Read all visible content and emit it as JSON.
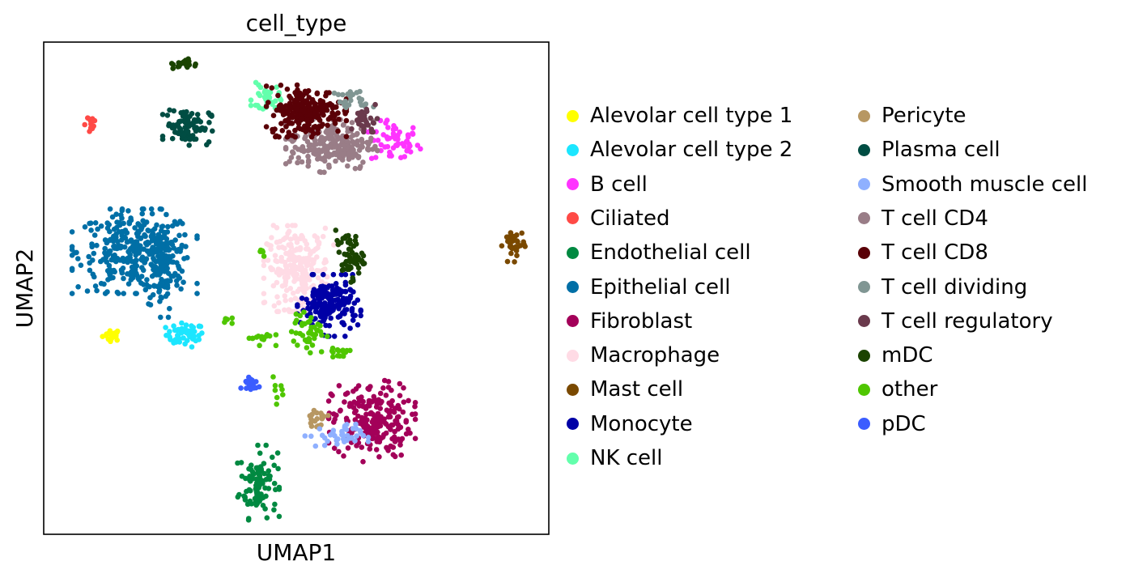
{
  "chart_data": {
    "type": "scatter",
    "title": "cell_type",
    "xlabel": "UMAP1",
    "ylabel": "UMAP2",
    "xlim": [
      0,
      100
    ],
    "ylim": [
      0,
      100
    ],
    "grid": false,
    "ticks": "none",
    "legend_position": "right",
    "legend_columns": 2,
    "series": [
      {
        "name": "Alevolar cell type 1",
        "color": "#ffff00",
        "clusters": [
          {
            "center": [
              13.5,
              40.5
            ],
            "spread": [
              1.2,
              0.8
            ],
            "n": 22
          }
        ]
      },
      {
        "name": "Alevolar cell type 2",
        "color": "#1ce6ff",
        "clusters": [
          {
            "center": [
              28.0,
              40.5
            ],
            "spread": [
              2.5,
              1.6
            ],
            "n": 50
          }
        ]
      },
      {
        "name": "B cell",
        "color": "#ff34ff",
        "clusters": [
          {
            "center": [
              69.5,
              79.5
            ],
            "spread": [
              3.2,
              2.8
            ],
            "n": 55
          }
        ]
      },
      {
        "name": "Ciliated",
        "color": "#ff4a46",
        "clusters": [
          {
            "center": [
              9.0,
              83.5
            ],
            "spread": [
              1.1,
              1.3
            ],
            "n": 14
          }
        ]
      },
      {
        "name": "Endothelial cell",
        "color": "#008941",
        "clusters": [
          {
            "center": [
              42.5,
              10.5
            ],
            "spread": [
              2.5,
              4.6
            ],
            "n": 100
          }
        ]
      },
      {
        "name": "Epithelial cell",
        "color": "#006fa6",
        "clusters": [
          {
            "center": [
              18.0,
              57.5
            ],
            "spread": [
              7.5,
              5.2
            ],
            "n": 320
          },
          {
            "center": [
              23.5,
              54.0
            ],
            "spread": [
              2.6,
              6.0
            ],
            "n": 110
          }
        ]
      },
      {
        "name": "Fibroblast",
        "color": "#a30059",
        "clusters": [
          {
            "center": [
              65.0,
              23.0
            ],
            "spread": [
              5.2,
              5.0
            ],
            "n": 220
          }
        ]
      },
      {
        "name": "Macrophage",
        "color": "#ffdbe5",
        "clusters": [
          {
            "center": [
              50.5,
              54.0
            ],
            "spread": [
              4.2,
              5.3
            ],
            "n": 240
          }
        ]
      },
      {
        "name": "Mast cell",
        "color": "#7a4900",
        "clusters": [
          {
            "center": [
              93.0,
              59.0
            ],
            "spread": [
              1.4,
              2.2
            ],
            "n": 35
          }
        ]
      },
      {
        "name": "Monocyte",
        "color": "#0000a6",
        "clusters": [
          {
            "center": [
              56.5,
              46.5
            ],
            "spread": [
              3.8,
              3.8
            ],
            "n": 180
          }
        ]
      },
      {
        "name": "NK cell",
        "color": "#63ffac",
        "clusters": [
          {
            "center": [
              44.0,
              88.5
            ],
            "spread": [
              1.8,
              2.0
            ],
            "n": 35
          }
        ]
      },
      {
        "name": "Pericyte",
        "color": "#b79762",
        "clusters": [
          {
            "center": [
              54.0,
              23.5
            ],
            "spread": [
              1.4,
              1.0
            ],
            "n": 18
          }
        ]
      },
      {
        "name": "Plasma cell",
        "color": "#004d43",
        "clusters": [
          {
            "center": [
              28.5,
              83.0
            ],
            "spread": [
              3.0,
              2.4
            ],
            "n": 95
          }
        ]
      },
      {
        "name": "Smooth muscle cell",
        "color": "#8fb0ff",
        "clusters": [
          {
            "center": [
              58.0,
              20.0
            ],
            "spread": [
              3.8,
              1.5
            ],
            "n": 40
          }
        ]
      },
      {
        "name": "T cell CD4",
        "color": "#997d87",
        "clusters": [
          {
            "center": [
              57.0,
              79.0
            ],
            "spread": [
              5.5,
              3.3
            ],
            "n": 220
          }
        ]
      },
      {
        "name": "T cell CD8",
        "color": "#5a0007",
        "clusters": [
          {
            "center": [
              52.0,
              86.0
            ],
            "spread": [
              4.8,
              3.2
            ],
            "n": 230
          }
        ]
      },
      {
        "name": "T cell dividing",
        "color": "#809693",
        "clusters": [
          {
            "center": [
              61.5,
              88.0
            ],
            "spread": [
              2.4,
              1.4
            ],
            "n": 25
          }
        ]
      },
      {
        "name": "T cell regulatory",
        "color": "#6a3a4c",
        "clusters": [
          {
            "center": [
              63.5,
              84.0
            ],
            "spread": [
              1.8,
              2.0
            ],
            "n": 30
          }
        ]
      },
      {
        "name": "mDC",
        "color": "#1b4400",
        "clusters": [
          {
            "center": [
              28.0,
              95.5
            ],
            "spread": [
              1.6,
              0.7
            ],
            "n": 22
          },
          {
            "center": [
              60.5,
              56.5
            ],
            "spread": [
              1.8,
              3.2
            ],
            "n": 60
          }
        ]
      },
      {
        "name": "other",
        "color": "#4fc601",
        "clusters": [
          {
            "center": [
              52.5,
              41.0
            ],
            "spread": [
              2.2,
              2.5
            ],
            "n": 40
          },
          {
            "center": [
              58.0,
              37.0
            ],
            "spread": [
              2.0,
              1.0
            ],
            "n": 15
          },
          {
            "center": [
              43.0,
              40.0
            ],
            "spread": [
              1.8,
              1.0
            ],
            "n": 15
          },
          {
            "center": [
              36.0,
              43.5
            ],
            "spread": [
              1.0,
              0.5
            ],
            "n": 6
          },
          {
            "center": [
              46.0,
              30.0
            ],
            "spread": [
              0.8,
              2.2
            ],
            "n": 8
          },
          {
            "center": [
              43.0,
              57.0
            ],
            "spread": [
              0.6,
              0.8
            ],
            "n": 5
          }
        ]
      },
      {
        "name": "pDC",
        "color": "#3b5dff",
        "clusters": [
          {
            "center": [
              41.0,
              30.5
            ],
            "spread": [
              1.3,
              1.2
            ],
            "n": 20
          }
        ]
      }
    ]
  }
}
